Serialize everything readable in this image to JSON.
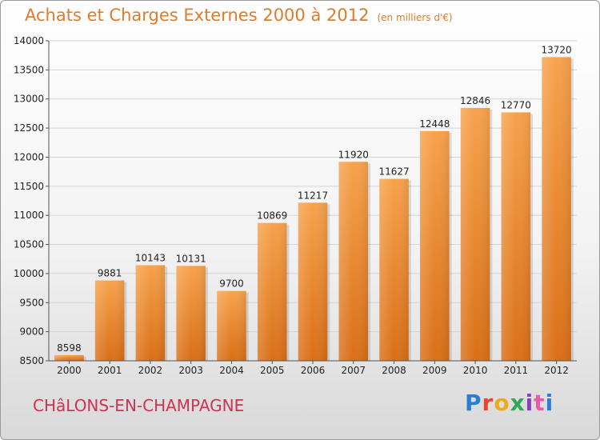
{
  "header": {
    "title": "Achats et Charges Externes 2000 à 2012",
    "unit": "(en milliers d'€)"
  },
  "footer": {
    "city": "CHâLONS-EN-CHAMPAGNE",
    "logo": "Proxiti"
  },
  "colors": {
    "bar_light": "#f7a24c",
    "bar_dark": "#d96f17",
    "title": "#e07b2a",
    "city": "#cc3355"
  },
  "chart_data": {
    "type": "bar",
    "title": "Achats et Charges Externes 2000 à 2012",
    "subtitle": "(en milliers d'€)",
    "xlabel": "",
    "ylabel": "",
    "categories": [
      "2000",
      "2001",
      "2002",
      "2003",
      "2004",
      "2005",
      "2006",
      "2007",
      "2008",
      "2009",
      "2010",
      "2011",
      "2012"
    ],
    "values": [
      8598,
      9881,
      10143,
      10131,
      9700,
      10869,
      11217,
      11920,
      11627,
      12448,
      12846,
      12770,
      13720
    ],
    "ylim": [
      8500,
      14000
    ],
    "yticks": [
      8500,
      9000,
      9500,
      10000,
      10500,
      11000,
      11500,
      12000,
      12500,
      13000,
      13500,
      14000
    ],
    "grid": true,
    "legend": "none"
  }
}
